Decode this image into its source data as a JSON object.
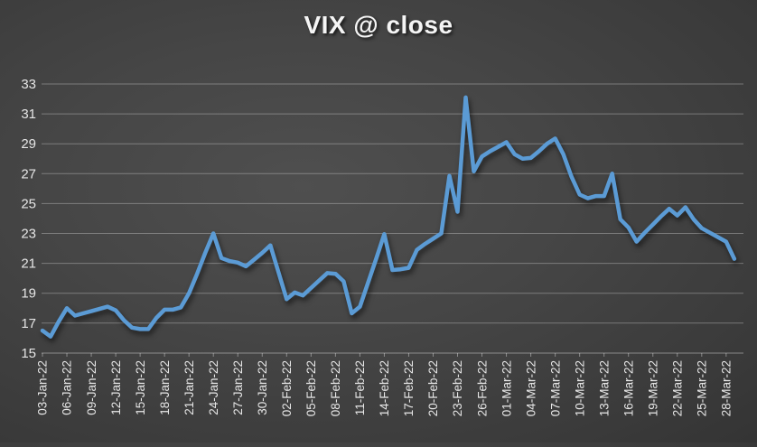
{
  "title": "VIX @ close",
  "colors": {
    "line": "#5b9bd5",
    "grid": "rgba(255,255,255,0.30)",
    "axis": "rgba(255,255,255,0.40)",
    "label": "#e6e6e6",
    "title_text": "#f5f5f5"
  },
  "chart_data": {
    "type": "line",
    "title": "VIX @ close",
    "xlabel": "",
    "ylabel": "",
    "legend": "none",
    "grid": "horizontal",
    "ylim": [
      15,
      33
    ],
    "y_ticks": [
      15,
      17,
      19,
      21,
      23,
      25,
      27,
      29,
      31,
      33
    ],
    "x_tick_every": 3,
    "x": [
      "03-Jan-22",
      "04-Jan-22",
      "05-Jan-22",
      "06-Jan-22",
      "07-Jan-22",
      "08-Jan-22",
      "09-Jan-22",
      "10-Jan-22",
      "11-Jan-22",
      "12-Jan-22",
      "13-Jan-22",
      "14-Jan-22",
      "15-Jan-22",
      "16-Jan-22",
      "17-Jan-22",
      "18-Jan-22",
      "19-Jan-22",
      "20-Jan-22",
      "21-Jan-22",
      "22-Jan-22",
      "23-Jan-22",
      "24-Jan-22",
      "25-Jan-22",
      "26-Jan-22",
      "27-Jan-22",
      "28-Jan-22",
      "29-Jan-22",
      "30-Jan-22",
      "31-Jan-22",
      "01-Feb-22",
      "02-Feb-22",
      "03-Feb-22",
      "04-Feb-22",
      "05-Feb-22",
      "06-Feb-22",
      "07-Feb-22",
      "08-Feb-22",
      "09-Feb-22",
      "10-Feb-22",
      "11-Feb-22",
      "12-Feb-22",
      "13-Feb-22",
      "14-Feb-22",
      "15-Feb-22",
      "16-Feb-22",
      "17-Feb-22",
      "18-Feb-22",
      "19-Feb-22",
      "20-Feb-22",
      "21-Feb-22",
      "22-Feb-22",
      "23-Feb-22",
      "24-Feb-22",
      "25-Feb-22",
      "26-Feb-22",
      "27-Feb-22",
      "28-Feb-22",
      "01-Mar-22",
      "02-Mar-22",
      "03-Mar-22",
      "04-Mar-22",
      "05-Mar-22",
      "06-Mar-22",
      "07-Mar-22",
      "08-Mar-22",
      "09-Mar-22",
      "10-Mar-22",
      "11-Mar-22",
      "12-Mar-22",
      "13-Mar-22",
      "14-Mar-22",
      "15-Mar-22",
      "16-Mar-22",
      "17-Mar-22",
      "18-Mar-22",
      "19-Mar-22",
      "20-Mar-22",
      "21-Mar-22",
      "22-Mar-22",
      "23-Mar-22",
      "24-Mar-22",
      "25-Mar-22",
      "26-Mar-22",
      "27-Mar-22",
      "28-Mar-22",
      "29-Mar-22"
    ],
    "values": [
      16.5,
      16.1,
      17.1,
      18.0,
      17.5,
      17.65,
      17.8,
      17.95,
      18.1,
      17.85,
      17.2,
      16.7,
      16.6,
      16.6,
      17.35,
      17.9,
      17.9,
      18.05,
      19.0,
      20.3,
      21.7,
      23.0,
      21.35,
      21.15,
      21.05,
      20.8,
      21.25,
      21.7,
      22.2,
      20.4,
      18.6,
      19.05,
      18.85,
      19.35,
      19.85,
      20.35,
      20.3,
      19.8,
      17.65,
      18.1,
      19.7,
      21.3,
      22.95,
      20.55,
      20.6,
      20.7,
      21.9,
      22.3,
      22.65,
      23.0,
      26.85,
      24.45,
      32.1,
      27.15,
      28.15,
      28.5,
      28.8,
      29.1,
      28.3,
      28.0,
      28.05,
      28.5,
      29.0,
      29.35,
      28.3,
      26.8,
      25.6,
      25.35,
      25.5,
      25.5,
      27.0,
      23.95,
      23.4,
      22.45,
      23.05,
      23.6,
      24.15,
      24.65,
      24.2,
      24.75,
      23.95,
      23.35,
      23.05,
      22.75,
      22.45,
      21.3
    ]
  }
}
